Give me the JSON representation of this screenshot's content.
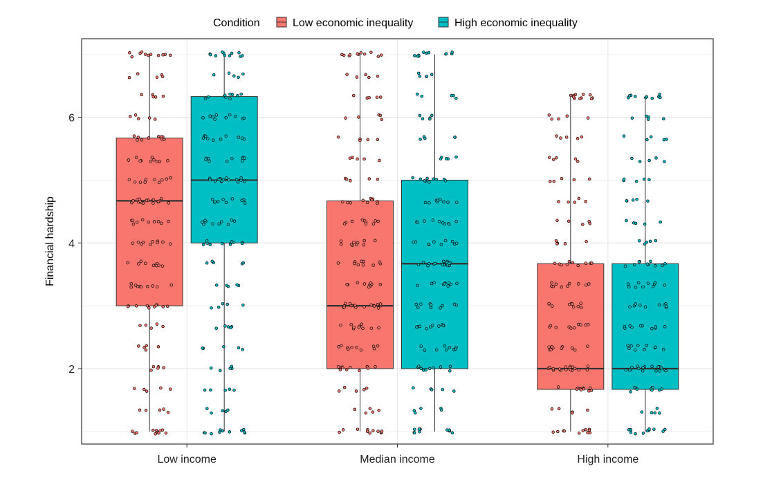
{
  "chart_data": {
    "type": "boxplot",
    "legend": {
      "title": "Condition",
      "position": "top",
      "entries": [
        {
          "name": "Low economic inequality",
          "color": "#F8766D"
        },
        {
          "name": "High economic inequality",
          "color": "#00BFC4"
        }
      ]
    },
    "categories": [
      "Low income",
      "Median income",
      "High income"
    ],
    "xlabel": "",
    "ylabel": "Financial hardship",
    "ylim": [
      0.8,
      7.25
    ],
    "yticks": [
      2,
      4,
      6
    ],
    "grid": true,
    "jitter_points": true,
    "series": [
      {
        "name": "Low economic inequality",
        "color": "#F8766D",
        "boxes": [
          {
            "category": "Low income",
            "min": 1,
            "q1": 3,
            "median": 4.67,
            "q3": 5.67,
            "max": 7
          },
          {
            "category": "Median income",
            "min": 1,
            "q1": 2,
            "median": 3,
            "q3": 4.67,
            "max": 7
          },
          {
            "category": "High income",
            "min": 1,
            "q1": 1.67,
            "median": 2,
            "q3": 3.67,
            "max": 6.33
          }
        ]
      },
      {
        "name": "High economic inequality",
        "color": "#00BFC4",
        "boxes": [
          {
            "category": "Low income",
            "min": 1,
            "q1": 4,
            "median": 5,
            "q3": 6.33,
            "max": 7
          },
          {
            "category": "Median income",
            "min": 1,
            "q1": 2,
            "median": 3.67,
            "q3": 5,
            "max": 7
          },
          {
            "category": "High income",
            "min": 1,
            "q1": 1.67,
            "median": 2,
            "q3": 3.67,
            "max": 6.33
          }
        ]
      }
    ]
  }
}
